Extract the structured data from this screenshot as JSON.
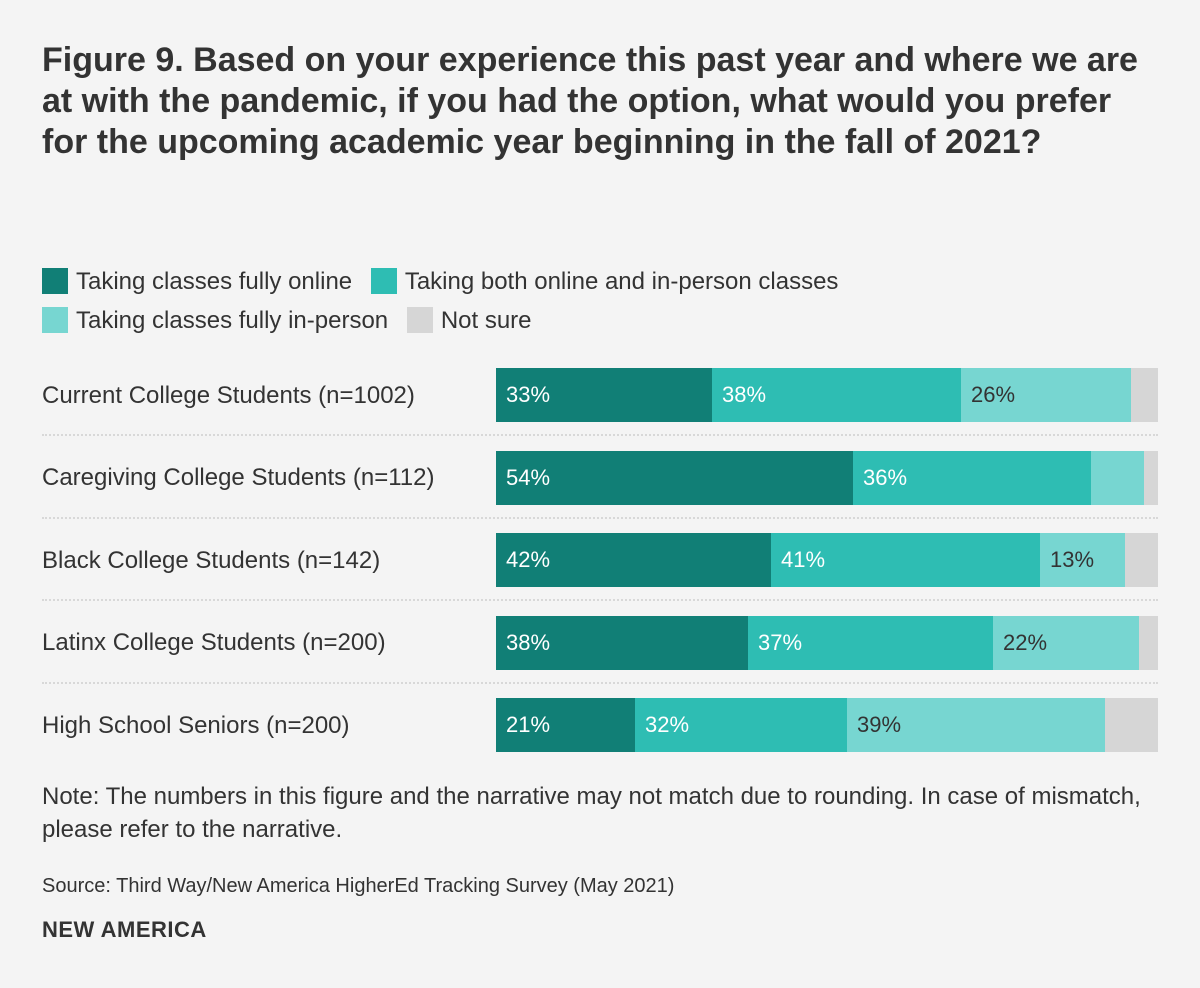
{
  "title": "Figure 9. Based on your experience this past year and where we are at with the pandemic, if you had the option, what would you prefer for the upcoming academic year beginning in the fall of 2021?",
  "note": "Note: The numbers in this figure and the narrative may not match due to rounding. In case of mismatch, please refer to the narrative.",
  "source": "Source: Third Way/New America HigherEd Tracking Survey (May 2021)",
  "brand": "NEW AMERICA",
  "chart_data": {
    "type": "bar",
    "orientation": "horizontal",
    "stacked": true,
    "xlim": [
      0,
      100
    ],
    "unit": "%",
    "legend_position": "top",
    "categories": [
      "Current College Students (n=1002)",
      "Caregiving College Students (n=112)",
      "Black College Students (n=142)",
      "Latinx College Students (n=200)",
      "High School Seniors (n=200)"
    ],
    "series": [
      {
        "name": "Taking classes fully online",
        "color": "#117f76",
        "label_color": "#ffffff",
        "values": [
          33,
          54,
          42,
          38,
          21
        ]
      },
      {
        "name": "Taking both online and in-person classes",
        "color": "#2ebdb3",
        "label_color": "#ffffff",
        "values": [
          38,
          36,
          41,
          37,
          32
        ]
      },
      {
        "name": "Taking classes fully in-person",
        "color": "#77d6d1",
        "label_color": "#333333",
        "values": [
          26,
          8,
          13,
          22,
          39
        ]
      },
      {
        "name": "Not sure",
        "color": "#d6d6d6",
        "label_color": "#333333",
        "values": [
          4,
          2,
          5,
          3,
          8
        ]
      }
    ],
    "labels": [
      [
        "33%",
        "38%",
        "26%",
        ""
      ],
      [
        "54%",
        "36%",
        "",
        ""
      ],
      [
        "42%",
        "41%",
        "13%",
        ""
      ],
      [
        "38%",
        "37%",
        "22%",
        ""
      ],
      [
        "21%",
        "32%",
        "39%",
        ""
      ]
    ]
  }
}
